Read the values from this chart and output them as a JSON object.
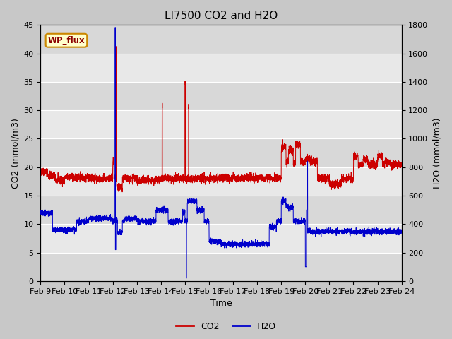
{
  "title": "LI7500 CO2 and H2O",
  "xlabel": "Time",
  "ylabel_left": "CO2 (mmol/m3)",
  "ylabel_right": "H2O (mmol/m3)",
  "xlim": [
    0,
    15
  ],
  "ylim_left": [
    0,
    45
  ],
  "ylim_right": [
    0,
    1800
  ],
  "xtick_labels": [
    "Feb 9",
    "Feb 10",
    "Feb 11",
    "Feb 12",
    "Feb 13",
    "Feb 14",
    "Feb 15",
    "Feb 16",
    "Feb 17",
    "Feb 18",
    "Feb 19",
    "Feb 20",
    "Feb 21",
    "Feb 22",
    "Feb 23",
    "Feb 24"
  ],
  "yticks_left": [
    0,
    5,
    10,
    15,
    20,
    25,
    30,
    35,
    40,
    45
  ],
  "yticks_right": [
    0,
    200,
    400,
    600,
    800,
    1000,
    1200,
    1400,
    1600,
    1800
  ],
  "co2_color": "#cc0000",
  "h2o_color": "#0000cc",
  "fig_bg": "#d8d8d8",
  "plot_bg": "#d0d0d0",
  "band_color_dark": "#c8c8c8",
  "band_color_light": "#e8e8e8",
  "annotation_text": "WP_flux",
  "annotation_bg": "#ffffcc",
  "annotation_border": "#cc8800",
  "legend_co2": "CO2",
  "legend_h2o": "H2O",
  "title_fontsize": 11,
  "label_fontsize": 9,
  "tick_fontsize": 8,
  "linewidth": 0.7
}
